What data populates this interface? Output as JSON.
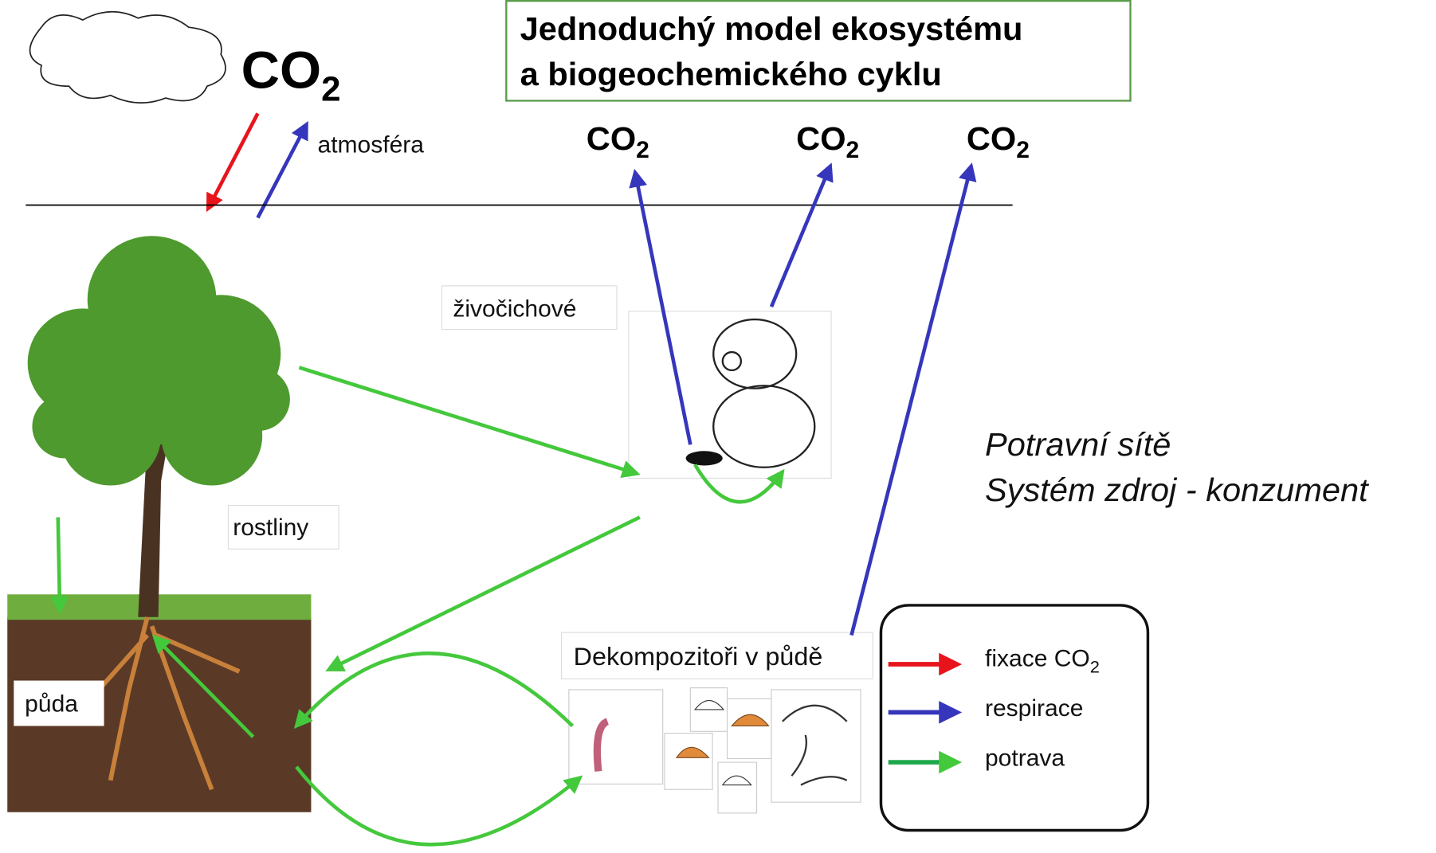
{
  "title": {
    "line1": "Jednoduchý model ekosystému",
    "line2": "a biogeochemického cyklu"
  },
  "atmosphere": {
    "co2": {
      "main": "CO",
      "sub": "2"
    },
    "label": "atmosféra"
  },
  "co2_outputs": [
    {
      "main": "CO",
      "sub": "2"
    },
    {
      "main": "CO",
      "sub": "2"
    },
    {
      "main": "CO",
      "sub": "2"
    }
  ],
  "nodes": {
    "plants": "rostliny",
    "soil": "půda",
    "animals": "živočichové",
    "decomposers": "Dekompozitoři v půdě"
  },
  "notes": [
    "Potravní sítě",
    "Systém zdroj - konzument"
  ],
  "legend": [
    {
      "text": "fixace CO",
      "sub": "2"
    },
    {
      "text": "respirace"
    },
    {
      "text": "potrava"
    }
  ]
}
